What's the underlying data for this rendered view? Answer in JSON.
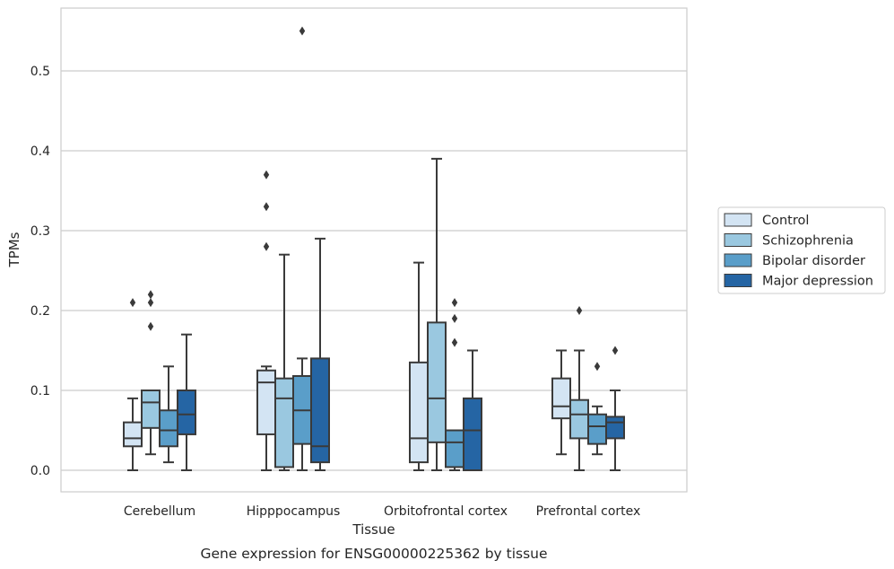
{
  "chart_data": {
    "type": "boxplot",
    "caption": "Gene expression for ENSG00000225362 by tissue",
    "xlabel": "Tissue",
    "ylabel": "TPMs",
    "ylim": [
      -0.027,
      0.58
    ],
    "yticks": [
      0.0,
      0.1,
      0.2,
      0.3,
      0.4,
      0.5
    ],
    "yticklabels": [
      "0.0",
      "0.1",
      "0.2",
      "0.3",
      "0.4",
      "0.5"
    ],
    "grid": "horizontal",
    "legend_position": "right-center",
    "categories": [
      "Cerebellum",
      "Hipppocampus",
      "Orbitofrontal cortex",
      "Prefrontal cortex"
    ],
    "series": [
      {
        "name": "Control",
        "color": "#d3e4f3",
        "boxes": [
          {
            "whislo": 0.0,
            "q1": 0.03,
            "med": 0.04,
            "q3": 0.06,
            "whishi": 0.09,
            "fliers": [
              0.21
            ]
          },
          {
            "whislo": 0.0,
            "q1": 0.045,
            "med": 0.11,
            "q3": 0.125,
            "whishi": 0.13,
            "fliers": [
              0.28,
              0.33,
              0.37
            ]
          },
          {
            "whislo": 0.0,
            "q1": 0.01,
            "med": 0.04,
            "q3": 0.135,
            "whishi": 0.26,
            "fliers": []
          },
          {
            "whislo": 0.02,
            "q1": 0.065,
            "med": 0.08,
            "q3": 0.115,
            "whishi": 0.15,
            "fliers": []
          }
        ]
      },
      {
        "name": "Schizophrenia",
        "color": "#9ac8e0",
        "boxes": [
          {
            "whislo": 0.02,
            "q1": 0.053,
            "med": 0.085,
            "q3": 0.1,
            "whishi": 0.1,
            "fliers": [
              0.18,
              0.21,
              0.22
            ]
          },
          {
            "whislo": 0.0,
            "q1": 0.004,
            "med": 0.09,
            "q3": 0.115,
            "whishi": 0.27,
            "fliers": []
          },
          {
            "whislo": 0.0,
            "q1": 0.035,
            "med": 0.09,
            "q3": 0.185,
            "whishi": 0.39,
            "fliers": []
          },
          {
            "whislo": 0.0,
            "q1": 0.04,
            "med": 0.07,
            "q3": 0.088,
            "whishi": 0.15,
            "fliers": [
              0.2
            ]
          }
        ]
      },
      {
        "name": "Bipolar disorder",
        "color": "#5a9ec9",
        "boxes": [
          {
            "whislo": 0.01,
            "q1": 0.03,
            "med": 0.05,
            "q3": 0.075,
            "whishi": 0.13,
            "fliers": []
          },
          {
            "whislo": 0.0,
            "q1": 0.033,
            "med": 0.075,
            "q3": 0.118,
            "whishi": 0.14,
            "fliers": [
              0.55
            ]
          },
          {
            "whislo": 0.0,
            "q1": 0.004,
            "med": 0.035,
            "q3": 0.05,
            "whishi": 0.05,
            "fliers": [
              0.16,
              0.19,
              0.21
            ]
          },
          {
            "whislo": 0.02,
            "q1": 0.033,
            "med": 0.055,
            "q3": 0.07,
            "whishi": 0.08,
            "fliers": [
              0.13
            ]
          }
        ]
      },
      {
        "name": "Major depression",
        "color": "#2565a4",
        "boxes": [
          {
            "whislo": 0.0,
            "q1": 0.045,
            "med": 0.07,
            "q3": 0.1,
            "whishi": 0.17,
            "fliers": []
          },
          {
            "whislo": 0.0,
            "q1": 0.01,
            "med": 0.03,
            "q3": 0.14,
            "whishi": 0.29,
            "fliers": []
          },
          {
            "whislo": 0.0,
            "q1": 0.0,
            "med": 0.05,
            "q3": 0.09,
            "whishi": 0.15,
            "fliers": []
          },
          {
            "whislo": 0.0,
            "q1": 0.04,
            "med": 0.06,
            "q3": 0.067,
            "whishi": 0.1,
            "fliers": [
              0.15
            ]
          }
        ]
      }
    ]
  }
}
